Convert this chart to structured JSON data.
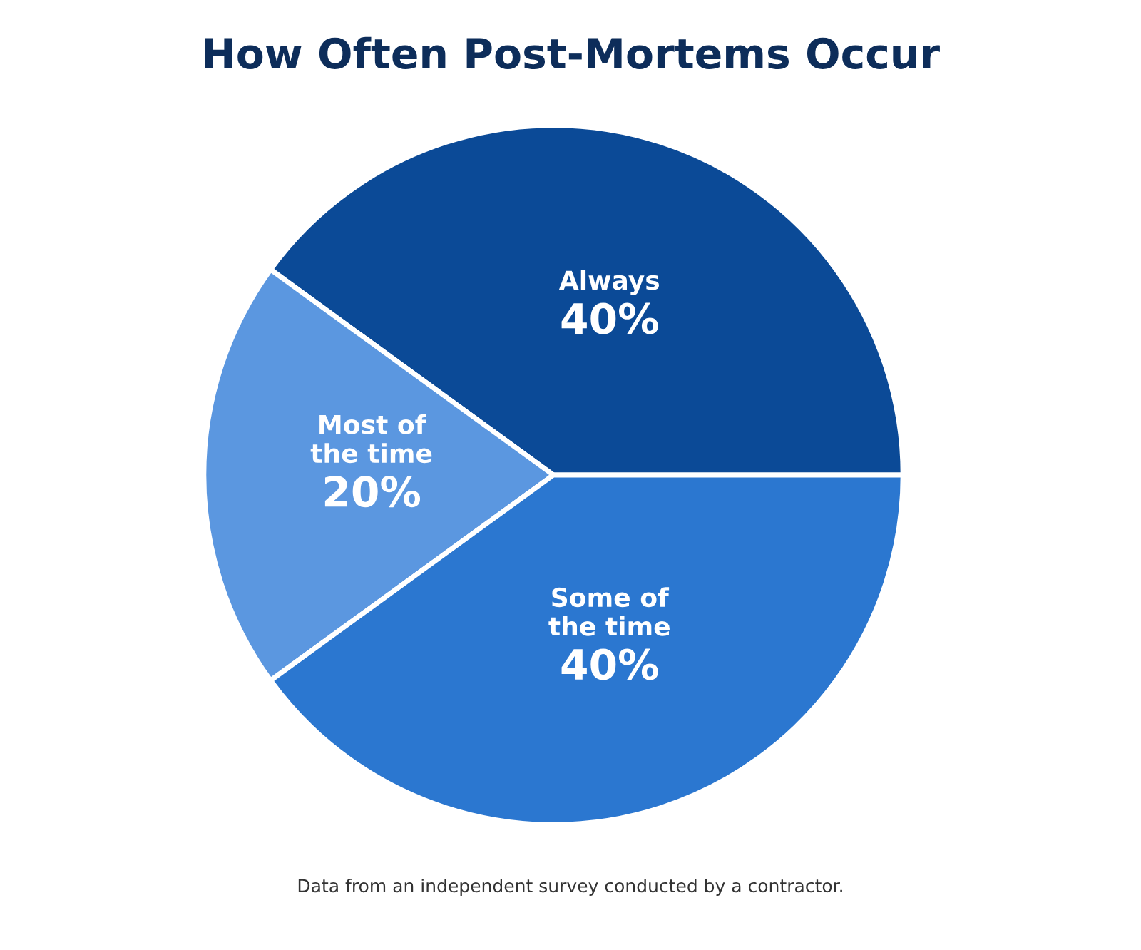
{
  "chart_data": {
    "type": "pie",
    "title": "How Often Post-Mortems Occur",
    "categories": [
      "Always",
      "Most of\nthe time",
      "Some of\nthe time"
    ],
    "values": [
      40,
      20,
      40
    ],
    "value_labels": [
      "40%",
      "20%",
      "40%"
    ],
    "colors": [
      "#0b4a97",
      "#5b97e0",
      "#2b77d0"
    ],
    "annotations": [
      "Data from an independent survey conducted by a contractor."
    ]
  }
}
